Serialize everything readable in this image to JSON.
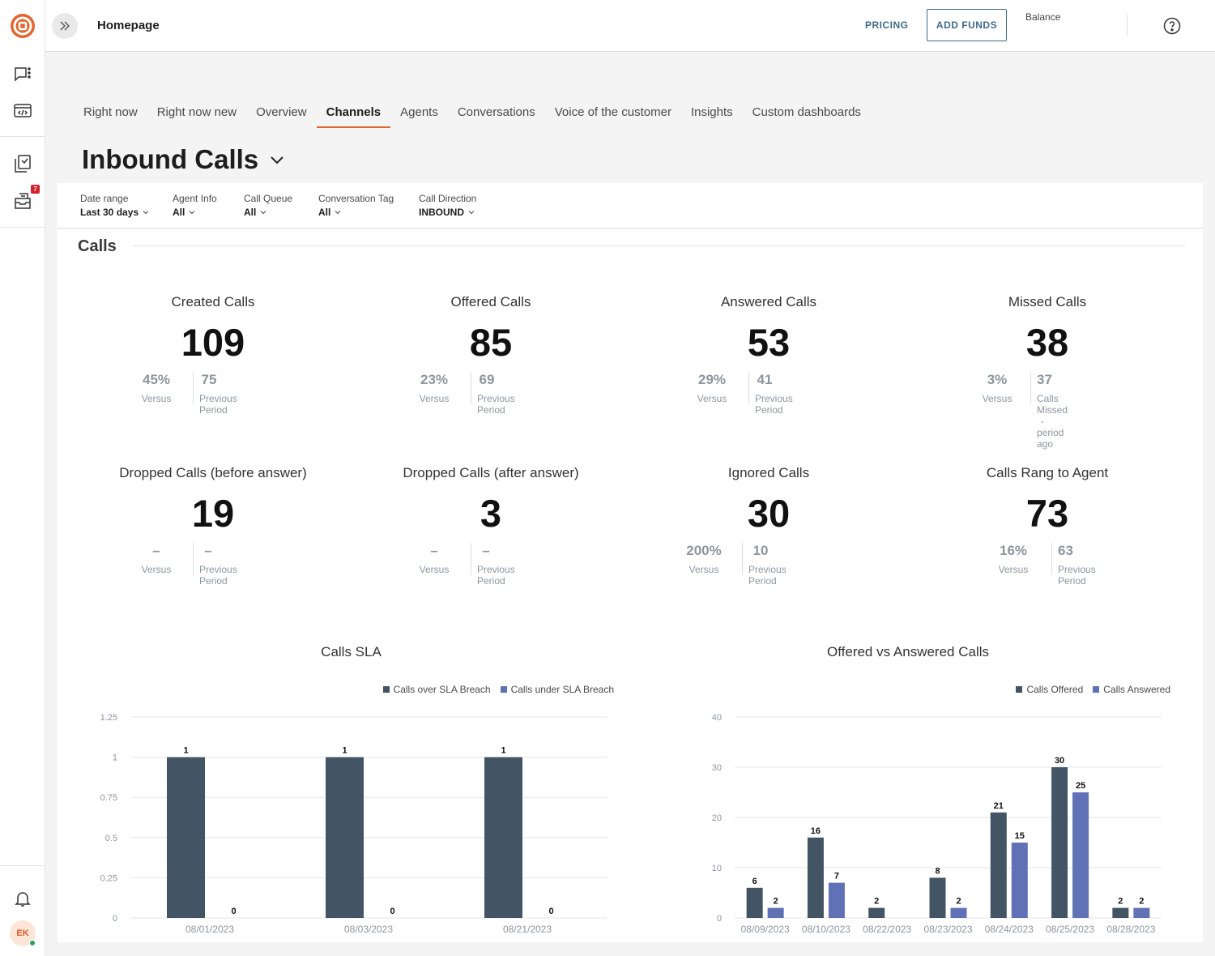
{
  "colors": {
    "accent": "#e3662f",
    "primary": "#3d6a8a",
    "bar_dark": "#435564",
    "bar_blue": "#6171b5",
    "muted": "#8d959e"
  },
  "rail": {
    "icons": [
      "logo-icon",
      "chat-icon",
      "code-window-icon",
      "reports-icon",
      "inbox-icon",
      "bell-icon"
    ],
    "badge_count": "7",
    "avatar_initials": "EK"
  },
  "topbar": {
    "page_label": "Homepage",
    "pricing_label": "PRICING",
    "add_funds_label": "ADD FUNDS",
    "balance_label": "Balance"
  },
  "tabs": [
    "Right now",
    "Right now new",
    "Overview",
    "Channels",
    "Agents",
    "Conversations",
    "Voice of the customer",
    "Insights",
    "Custom dashboards"
  ],
  "active_tab": "Channels",
  "dashboard_title": "Inbound Calls",
  "filters": [
    {
      "label": "Date range",
      "value": "Last 30 days"
    },
    {
      "label": "Agent Info",
      "value": "All"
    },
    {
      "label": "Call Queue",
      "value": "All"
    },
    {
      "label": "Conversation Tag",
      "value": "All"
    },
    {
      "label": "Call Direction",
      "value": "INBOUND"
    }
  ],
  "section_title": "Calls",
  "metrics": [
    {
      "title": "Created Calls",
      "value": "109",
      "versus": "45%",
      "versus_label": "Versus",
      "previous": "75",
      "previous_label": "Previous Period"
    },
    {
      "title": "Offered Calls",
      "value": "85",
      "versus": "23%",
      "versus_label": "Versus",
      "previous": "69",
      "previous_label": "Previous Period"
    },
    {
      "title": "Answered Calls",
      "value": "53",
      "versus": "29%",
      "versus_label": "Versus",
      "previous": "41",
      "previous_label": "Previous Period"
    },
    {
      "title": "Missed Calls",
      "value": "38",
      "versus": "3%",
      "versus_label": "Versus",
      "previous": "37",
      "previous_label": "Calls Missed - period ago"
    },
    {
      "title": "Dropped Calls (before answer)",
      "value": "19",
      "versus": "–",
      "versus_label": "Versus",
      "previous": "–",
      "previous_label": "Previous Period"
    },
    {
      "title": "Dropped Calls (after answer)",
      "value": "3",
      "versus": "–",
      "versus_label": "Versus",
      "previous": "–",
      "previous_label": "Previous Period"
    },
    {
      "title": "Ignored Calls",
      "value": "30",
      "versus": "200%",
      "versus_label": "Versus",
      "previous": "10",
      "previous_label": "Previous Period"
    },
    {
      "title": "Calls Rang to Agent",
      "value": "73",
      "versus": "16%",
      "versus_label": "Versus",
      "previous": "63",
      "previous_label": "Previous Period"
    }
  ],
  "chart_data": [
    {
      "type": "bar",
      "title": "Calls SLA",
      "categories": [
        "08/01/2023",
        "08/03/2023",
        "08/21/2023"
      ],
      "series": [
        {
          "name": "Calls over SLA Breach",
          "values": [
            1,
            1,
            1
          ],
          "color": "#435564"
        },
        {
          "name": "Calls under SLA Breach",
          "values": [
            0,
            0,
            0
          ],
          "color": "#6171b5"
        }
      ],
      "ylim": [
        0,
        1.25
      ],
      "yticks": [
        "0",
        "0.25",
        "0.5",
        "0.75",
        "1",
        "1.25"
      ],
      "legend": "top-right",
      "grid": true
    },
    {
      "type": "bar",
      "title": "Offered vs Answered Calls",
      "categories": [
        "08/09/2023",
        "08/10/2023",
        "08/22/2023",
        "08/23/2023",
        "08/24/2023",
        "08/25/2023",
        "08/28/2023"
      ],
      "series": [
        {
          "name": "Calls Offered",
          "values": [
            6,
            16,
            2,
            8,
            21,
            30,
            2
          ],
          "color": "#435564"
        },
        {
          "name": "Calls Answered",
          "values": [
            2,
            7,
            0,
            2,
            15,
            25,
            2
          ],
          "color": "#6171b5"
        }
      ],
      "ylim": [
        0,
        40
      ],
      "yticks": [
        "0",
        "10",
        "20",
        "30",
        "40"
      ],
      "legend": "top-right",
      "grid": true
    }
  ]
}
